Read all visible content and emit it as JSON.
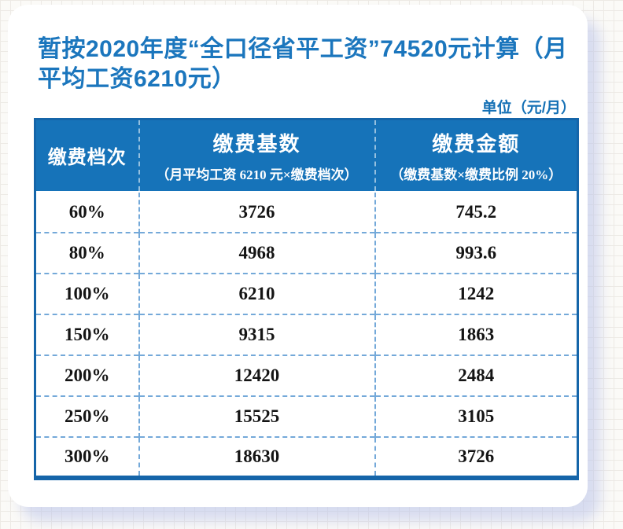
{
  "page": {
    "title": "暂按2020年度“全口径省平工资”74520元计算（月平均工资6210元）",
    "unit_label": "单位（元/月）"
  },
  "colors": {
    "title_blue": "#1b76bd",
    "header_background": "#1673b9",
    "table_border": "#1565a9",
    "dashed_grid": "#74a9d9",
    "shadow": "#bac3e9"
  },
  "chart_data": {
    "type": "table",
    "title": "暂按2020年度“全口径省平工资”74520元计算（月平均工资6210元）",
    "unit": "单位（元/月）",
    "columns": [
      {
        "label": "缴费档次",
        "sub": ""
      },
      {
        "label": "缴费基数",
        "sub": "（月平均工资 6210 元×缴费档次）"
      },
      {
        "label": "缴费金额",
        "sub": "（缴费基数×缴费比例 20%）"
      }
    ],
    "rows": [
      [
        "60%",
        "3726",
        "745.2"
      ],
      [
        "80%",
        "4968",
        "993.6"
      ],
      [
        "100%",
        "6210",
        "1242"
      ],
      [
        "150%",
        "9315",
        "1863"
      ],
      [
        "200%",
        "12420",
        "2484"
      ],
      [
        "250%",
        "15525",
        "3105"
      ],
      [
        "300%",
        "18630",
        "3726"
      ]
    ]
  }
}
